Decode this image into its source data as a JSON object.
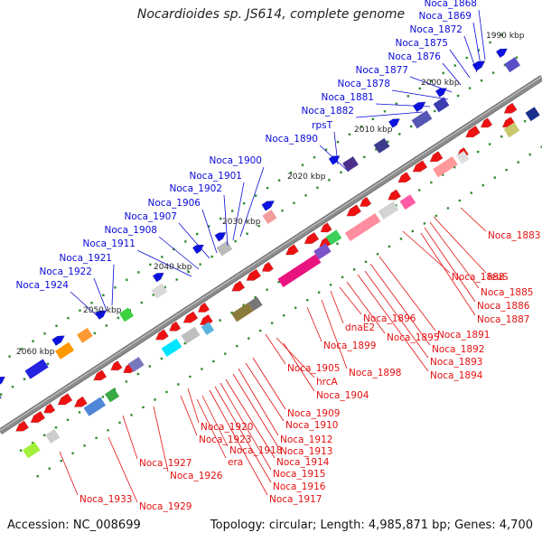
{
  "title": "Nocardioides sp. JS614, complete genome",
  "footer": {
    "accession": "Accession: NC_008699",
    "topology": "Topology: circular; Length: 4,985,871 bp; Genes: 4,700"
  },
  "colors": {
    "backbone": "#8c8c8c",
    "plus_strand_arrows": "#0b12e0",
    "minus_strand_arrows": "#ee1111",
    "plus_labels": "#0a0ad8",
    "minus_labels": "#e41010",
    "tick_dots": "#2e8b2e"
  },
  "ruler_labels": [
    "1990 kbp",
    "2000 kbp",
    "2010 kbp",
    "2020 kbp",
    "2030 kbp",
    "2040 kbp",
    "2050 kbp",
    "2060 kbp"
  ],
  "plus_labels": [
    "Noca_1868",
    "Noca_1869",
    "Noca_1872",
    "Noca_1875",
    "Noca_1876",
    "Noca_1877",
    "Noca_1878",
    "Noca_1881",
    "Noca_1882",
    "rpsT",
    "Noca_1890",
    "Noca_1900",
    "Noca_1901",
    "Noca_1902",
    "Noca_1906",
    "Noca_1907",
    "Noca_1908",
    "Noca_1911",
    "Noca_1921",
    "Noca_1922",
    "Noca_1924"
  ],
  "minus_labels": [
    "Noca_1883",
    "leuS",
    "Noca_1885",
    "Noca_1886",
    "Noca_1887",
    "Noca_1888",
    "Noca_1891",
    "Noca_1892",
    "Noca_1893",
    "Noca_1894",
    "Noca_1895",
    "Noca_1896",
    "dnaE2",
    "Noca_1899",
    "Noca_1898",
    "Noca_1905",
    "hrcA",
    "Noca_1904",
    "Noca_1909",
    "Noca_1910",
    "Noca_1912",
    "Noca_1913",
    "Noca_1914",
    "Noca_1915",
    "Noca_1916",
    "Noca_1917",
    "Noca_1918",
    "era",
    "Noca_1920",
    "Noca_1923",
    "Noca_1926",
    "Noca_1927",
    "Noca_1929",
    "Noca_1933"
  ]
}
